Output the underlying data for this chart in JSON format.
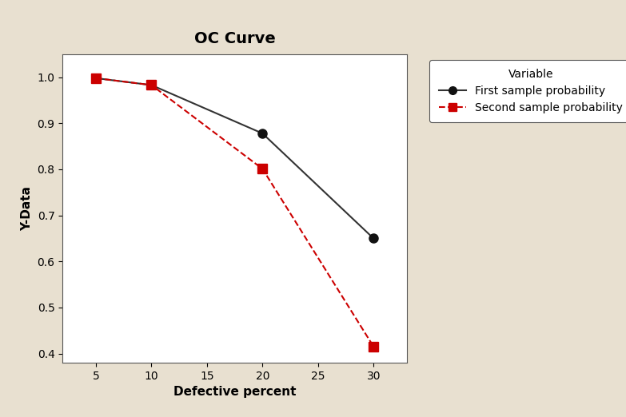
{
  "title": "OC Curve",
  "xlabel": "Defective percent",
  "ylabel": "Y-Data",
  "background_color": "#e8e0d0",
  "plot_background": "#ffffff",
  "line1_x": [
    5,
    10,
    20,
    30
  ],
  "line1_y": [
    0.998,
    0.983,
    0.878,
    0.65
  ],
  "line1_label": "First sample probability",
  "line1_color": "#333333",
  "line1_marker": "o",
  "line1_markercolor": "#111111",
  "line2_x": [
    5,
    10,
    20,
    30
  ],
  "line2_y": [
    0.998,
    0.983,
    0.801,
    0.415
  ],
  "line2_label": "Second sample probability",
  "line2_color": "#cc0000",
  "line2_marker": "s",
  "line2_markercolor": "#cc0000",
  "xlim": [
    2,
    33
  ],
  "ylim": [
    0.38,
    1.05
  ],
  "xticks": [
    5,
    10,
    15,
    20,
    25,
    30
  ],
  "yticks": [
    0.4,
    0.5,
    0.6,
    0.7,
    0.8,
    0.9,
    1.0
  ],
  "legend_title": "Variable",
  "title_fontsize": 14,
  "axis_label_fontsize": 11,
  "tick_fontsize": 10,
  "legend_fontsize": 10
}
